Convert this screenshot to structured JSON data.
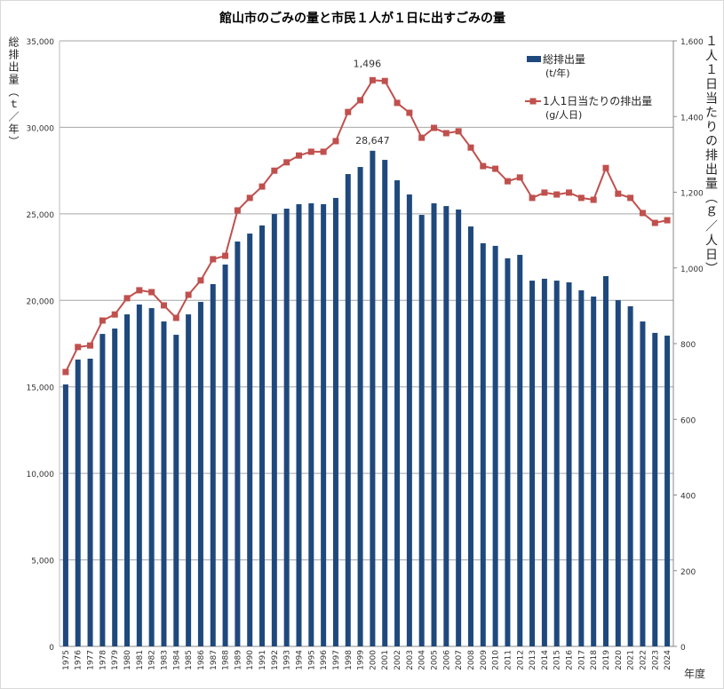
{
  "chart_data": {
    "type": "bar+line",
    "title": "館山市のごみの量と市民１人が１日に出すごみの量",
    "ylabel_left": "総排出量（ｔ／年）",
    "ylabel_right": "１人１日当たりの排出量（ｇ／人日）",
    "xlabel": "年度",
    "ylim_left": [
      0,
      35000
    ],
    "ylim_right": [
      0,
      1600
    ],
    "yticks_left": [
      "0",
      "5,000",
      "10,000",
      "15,000",
      "20,000",
      "25,000",
      "30,000",
      "35,000"
    ],
    "yticks_right": [
      "0",
      "200",
      "400",
      "600",
      "800",
      "1,000",
      "1,200",
      "1,400",
      "1,600"
    ],
    "grid": true,
    "legend_placement": "top-right",
    "categories": [
      "1975",
      "1976",
      "1977",
      "1978",
      "1979",
      "1980",
      "1981",
      "1982",
      "1983",
      "1984",
      "1985",
      "1986",
      "1987",
      "1988",
      "1989",
      "1990",
      "1991",
      "1992",
      "1993",
      "1994",
      "1995",
      "1996",
      "1997",
      "1998",
      "1999",
      "2000",
      "2001",
      "2002",
      "2003",
      "2004",
      "2005",
      "2006",
      "2007",
      "2008",
      "2009",
      "2010",
      "2011",
      "2012",
      "2013",
      "2014",
      "2015",
      "2016",
      "2017",
      "2018",
      "2019",
      "2020",
      "2021",
      "2022",
      "2023",
      "2024"
    ],
    "series": [
      {
        "name": "総排出量",
        "unit": "(t/年)",
        "axis": "left",
        "kind": "bar",
        "color": "#1f497d",
        "values": [
          15140,
          16580,
          16630,
          18060,
          18370,
          19190,
          19760,
          19550,
          18780,
          18010,
          19190,
          19910,
          20940,
          22070,
          23400,
          23860,
          24330,
          24990,
          25300,
          25560,
          25610,
          25560,
          25920,
          27300,
          27710,
          28647,
          28120,
          26940,
          26120,
          24940,
          25610,
          25450,
          25250,
          24270,
          23300,
          23150,
          22430,
          22630,
          21140,
          21250,
          21140,
          21040,
          20580,
          20220,
          21400,
          20010,
          19660,
          18780,
          18120,
          17960
        ]
      },
      {
        "name": "1人1日当たりの排出量",
        "unit": "(g/人日)",
        "axis": "right",
        "kind": "line",
        "color": "#c0504d",
        "values": [
          725,
          791,
          795,
          861,
          877,
          920,
          941,
          936,
          901,
          868,
          929,
          967,
          1023,
          1032,
          1152,
          1185,
          1215,
          1257,
          1279,
          1297,
          1307,
          1307,
          1335,
          1412,
          1443,
          1496,
          1494,
          1436,
          1410,
          1344,
          1370,
          1356,
          1361,
          1318,
          1269,
          1262,
          1229,
          1239,
          1185,
          1199,
          1194,
          1199,
          1185,
          1180,
          1264,
          1196,
          1185,
          1145,
          1119,
          1126
        ]
      }
    ],
    "annotations": [
      {
        "text": "28,647",
        "series": 0,
        "category": "2000"
      },
      {
        "text": "1,496",
        "series": 1,
        "category": "2000"
      }
    ]
  }
}
